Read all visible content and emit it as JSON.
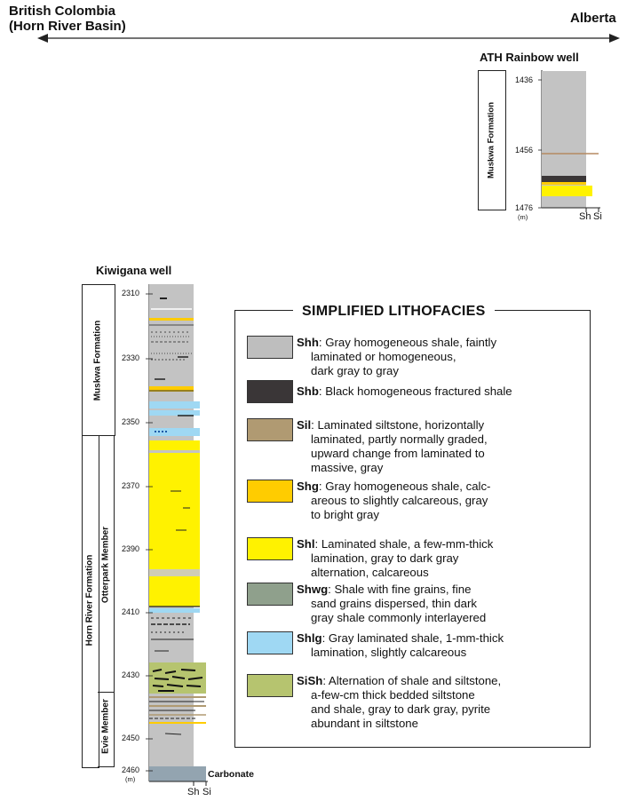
{
  "regions": {
    "west_line1": "British Colombia",
    "west_line2": "(Horn River Basin)",
    "east": "Alberta"
  },
  "rainbow_well": {
    "title": "ATH Rainbow well",
    "formation": "Muskwa Formation",
    "depth_ticks": [
      "1436",
      "1456",
      "1476"
    ],
    "unit": "(m)",
    "x_labels": [
      "Sh",
      "Si"
    ]
  },
  "kiwigana_well": {
    "title": "Kiwigana well",
    "formations": {
      "muskwa": "Muskwa Formation",
      "horn_river": "Horn River Formation",
      "otterpark": "Otterpark Member",
      "evie": "Evie Member"
    },
    "depth_ticks": [
      "2310",
      "2330",
      "2350",
      "2370",
      "2390",
      "2410",
      "2430",
      "2450",
      "2460"
    ],
    "unit": "(m)",
    "x_labels": [
      "Sh",
      "Si"
    ],
    "base_label": "Carbonate"
  },
  "legend": {
    "title": "SIMPLIFIED LITHOFACIES",
    "items": [
      {
        "code": "Shh",
        "color": "#bebebe",
        "lines": [
          ": Gray homogeneous shale, faintly",
          "laminated or homogeneous,",
          "dark gray to gray"
        ]
      },
      {
        "code": "Shb",
        "color": "#3a3637",
        "lines": [
          ": Black homogeneous fractured shale"
        ]
      },
      {
        "code": "Sil",
        "color": "#b09a72",
        "lines": [
          ": Laminated siltstone, horizontally",
          "laminated, partly normally graded,",
          "upward change from laminated to",
          "massive, gray"
        ]
      },
      {
        "code": "Shg",
        "color": "#ffcc00",
        "lines": [
          ": Gray homogeneous shale, calc-",
          "areous to slightly calcareous, gray",
          "to bright gray"
        ]
      },
      {
        "code": "Shl",
        "color": "#fff200",
        "lines": [
          ": Laminated shale, a few-mm-thick",
          "lamination, gray to dark gray",
          "alternation, calcareous"
        ]
      },
      {
        "code": "Shwg",
        "color": "#8fa08c",
        "lines": [
          ": Shale with fine grains, fine",
          "sand grains dispersed, thin dark",
          "gray shale commonly interlayered"
        ]
      },
      {
        "code": "Shlg",
        "color": "#9fd8f3",
        "lines": [
          ": Gray laminated shale, 1-mm-thick",
          "lamination, slightly calcareous"
        ]
      },
      {
        "code": "SiSh",
        "color": "#b6c46f",
        "lines": [
          ": Alternation of shale and siltstone,",
          "a-few-cm thick bedded siltstone",
          "and shale, gray to dark gray, pyrite",
          "abundant in siltstone"
        ]
      }
    ]
  }
}
